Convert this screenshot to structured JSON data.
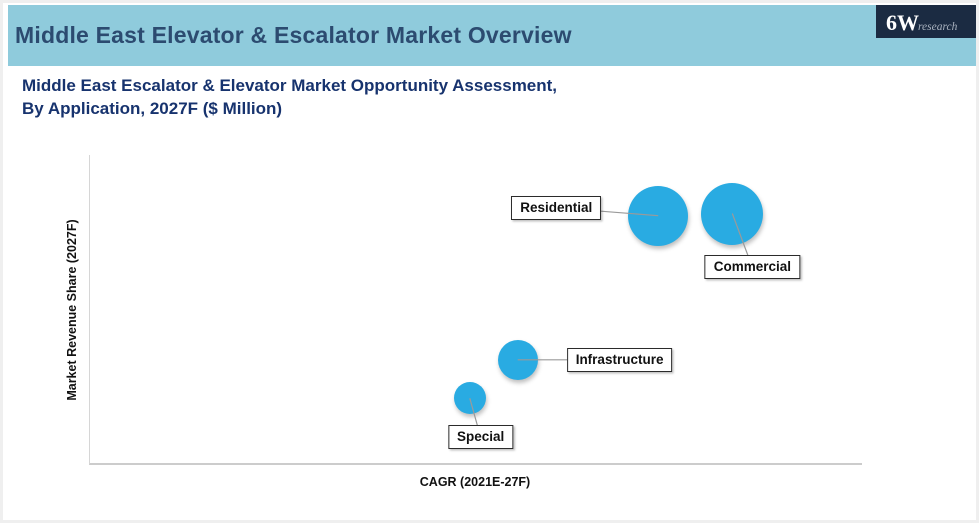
{
  "header": {
    "title": "Middle East Elevator & Escalator Market Overview",
    "logo_main": "6W",
    "logo_sub": "research"
  },
  "subtitle": {
    "line1": "Middle East Escalator & Elevator Market Opportunity Assessment,",
    "line2": "By Application, 2027F ($ Million)"
  },
  "chart_data": {
    "type": "bubble",
    "title": "Middle East Escalator & Elevator Market Opportunity Assessment, By Application, 2027F ($ Million)",
    "xlabel": "CAGR (2021E-27F)",
    "ylabel": "Market Revenue Share (2027F)",
    "x_ticks": [],
    "y_ticks": [],
    "grid": false,
    "axes_note": "Axes are unlabeled/unscaled; point positions are fractions of the plot area (x from left axis, y from bottom axis), bubble size in px radius as drawn.",
    "bubble_color": "#29abe2",
    "points": [
      {
        "label": "Special",
        "x_rel": 0.492,
        "y_rel": 0.21,
        "radius_px": 16,
        "label_x_rel": 0.506,
        "label_y_rel": 0.084
      },
      {
        "label": "Infrastructure",
        "x_rel": 0.554,
        "y_rel": 0.335,
        "radius_px": 20,
        "label_x_rel": 0.686,
        "label_y_rel": 0.335
      },
      {
        "label": "Residential",
        "x_rel": 0.736,
        "y_rel": 0.803,
        "radius_px": 30,
        "label_x_rel": 0.604,
        "label_y_rel": 0.829
      },
      {
        "label": "Commercial",
        "x_rel": 0.832,
        "y_rel": 0.81,
        "radius_px": 31,
        "label_x_rel": 0.858,
        "label_y_rel": 0.635
      }
    ]
  },
  "colors": {
    "band_bg": "#8fcbdc",
    "title_text": "#2c4b70",
    "subtitle_text": "#17336e",
    "logo_bg": "#1b2b42",
    "logo_text": "#ffffff",
    "logo_sub_text": "#a9b2bf",
    "bubble": "#29abe2",
    "axis_line": "#d6d6d6",
    "leader_line": "#9a9a9a",
    "label_border": "#2b2b2b",
    "frame": "#efefef"
  }
}
